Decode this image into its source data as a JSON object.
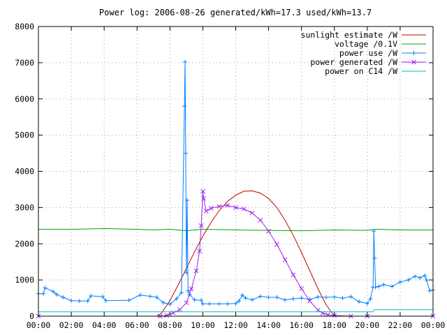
{
  "chart_data": {
    "type": "line",
    "title": "Power log: 2006-08-26 generated/kWh=17.3 used/kWh=13.7",
    "xlabel": "",
    "ylabel": "",
    "xlim": [
      0,
      24
    ],
    "ylim": [
      0,
      8000
    ],
    "grid": true,
    "legend_position": "top-right",
    "x_ticks": [
      "00:00",
      "02:00",
      "04:00",
      "06:00",
      "08:00",
      "10:00",
      "12:00",
      "14:00",
      "16:00",
      "18:00",
      "20:00",
      "22:00",
      "00:00"
    ],
    "y_ticks": [
      "0",
      "1000",
      "2000",
      "3000",
      "4000",
      "5000",
      "6000",
      "7000",
      "8000"
    ],
    "series": [
      {
        "name": "sunlight estimate /W",
        "style": "line",
        "color": "#c00000",
        "x": [
          0,
          7.2,
          7.5,
          8,
          8.5,
          9,
          9.5,
          10,
          10.5,
          11,
          11.5,
          12,
          12.5,
          13,
          13.5,
          14,
          14.5,
          15,
          15.5,
          16,
          16.5,
          17,
          17.5,
          18,
          24
        ],
        "y": [
          0,
          0,
          90,
          430,
          860,
          1320,
          1780,
          2210,
          2590,
          2920,
          3170,
          3340,
          3450,
          3460,
          3400,
          3250,
          3000,
          2650,
          2230,
          1760,
          1260,
          760,
          310,
          0,
          0
        ]
      },
      {
        "name": "voltage /0.1V",
        "style": "line",
        "color": "#00a000",
        "x": [
          0,
          2,
          4,
          6,
          7,
          8,
          9,
          10,
          12,
          14,
          16,
          18,
          20,
          20.5,
          22,
          24
        ],
        "y": [
          2400,
          2400,
          2420,
          2400,
          2380,
          2400,
          2360,
          2400,
          2380,
          2370,
          2360,
          2380,
          2370,
          2400,
          2380,
          2380
        ]
      },
      {
        "name": "power use /W",
        "style": "linepoints",
        "color": "#0080ff",
        "x": [
          0,
          0.3,
          0.4,
          0.9,
          1.1,
          1.5,
          2,
          2.5,
          3.0,
          3.2,
          3.9,
          4.1,
          5.5,
          6.2,
          6.8,
          7.2,
          7.6,
          8.0,
          8.4,
          8.7,
          8.88,
          8.92,
          8.96,
          9.0,
          9.05,
          9.1,
          9.2,
          9.5,
          9.9,
          10.0,
          10.4,
          11.0,
          11.5,
          12.0,
          12.2,
          12.4,
          12.6,
          13.0,
          13.5,
          14.0,
          14.5,
          15.0,
          15.5,
          16.0,
          16.5,
          17.0,
          17.5,
          18.0,
          18.5,
          19.0,
          19.5,
          20.0,
          20.2,
          20.35,
          20.4,
          20.45,
          20.5,
          20.7,
          21.0,
          21.5,
          22.0,
          22.5,
          22.9,
          23.2,
          23.5,
          23.6,
          23.8,
          24.0
        ],
        "y": [
          620,
          620,
          780,
          680,
          600,
          520,
          430,
          420,
          420,
          560,
          540,
          430,
          440,
          580,
          550,
          520,
          370,
          330,
          480,
          650,
          5800,
          7020,
          4500,
          1200,
          3200,
          700,
          600,
          450,
          440,
          340,
          340,
          340,
          340,
          350,
          420,
          580,
          500,
          450,
          550,
          520,
          520,
          450,
          480,
          500,
          460,
          530,
          520,
          530,
          500,
          540,
          400,
          350,
          480,
          800,
          2350,
          1600,
          800,
          820,
          870,
          820,
          940,
          1000,
          1100,
          1060,
          1120,
          1000,
          700,
          720
        ]
      },
      {
        "name": "power generated /W",
        "style": "linepoints",
        "color": "#a020f0",
        "x": [
          0,
          7.4,
          7.8,
          8.2,
          8.6,
          9.0,
          9.3,
          9.6,
          9.8,
          9.9,
          10.0,
          10.05,
          10.2,
          10.5,
          11.0,
          11.5,
          12.0,
          12.5,
          13.0,
          13.5,
          14.0,
          14.5,
          15.0,
          15.5,
          16.0,
          16.5,
          17.0,
          17.3,
          17.6,
          18.0,
          19.0,
          20.0,
          24
        ],
        "y": [
          0,
          0,
          20,
          90,
          180,
          370,
          750,
          1250,
          1800,
          2500,
          3450,
          3250,
          2900,
          2980,
          3030,
          3060,
          3000,
          2960,
          2850,
          2650,
          2350,
          1980,
          1560,
          1140,
          760,
          420,
          170,
          80,
          40,
          20,
          0,
          0,
          0
        ]
      },
      {
        "name": "power on C14 /W",
        "style": "line",
        "color": "#00c0c0",
        "x": [
          0,
          20.35,
          20.4,
          24
        ],
        "y": [
          120,
          120,
          180,
          180
        ]
      }
    ]
  }
}
